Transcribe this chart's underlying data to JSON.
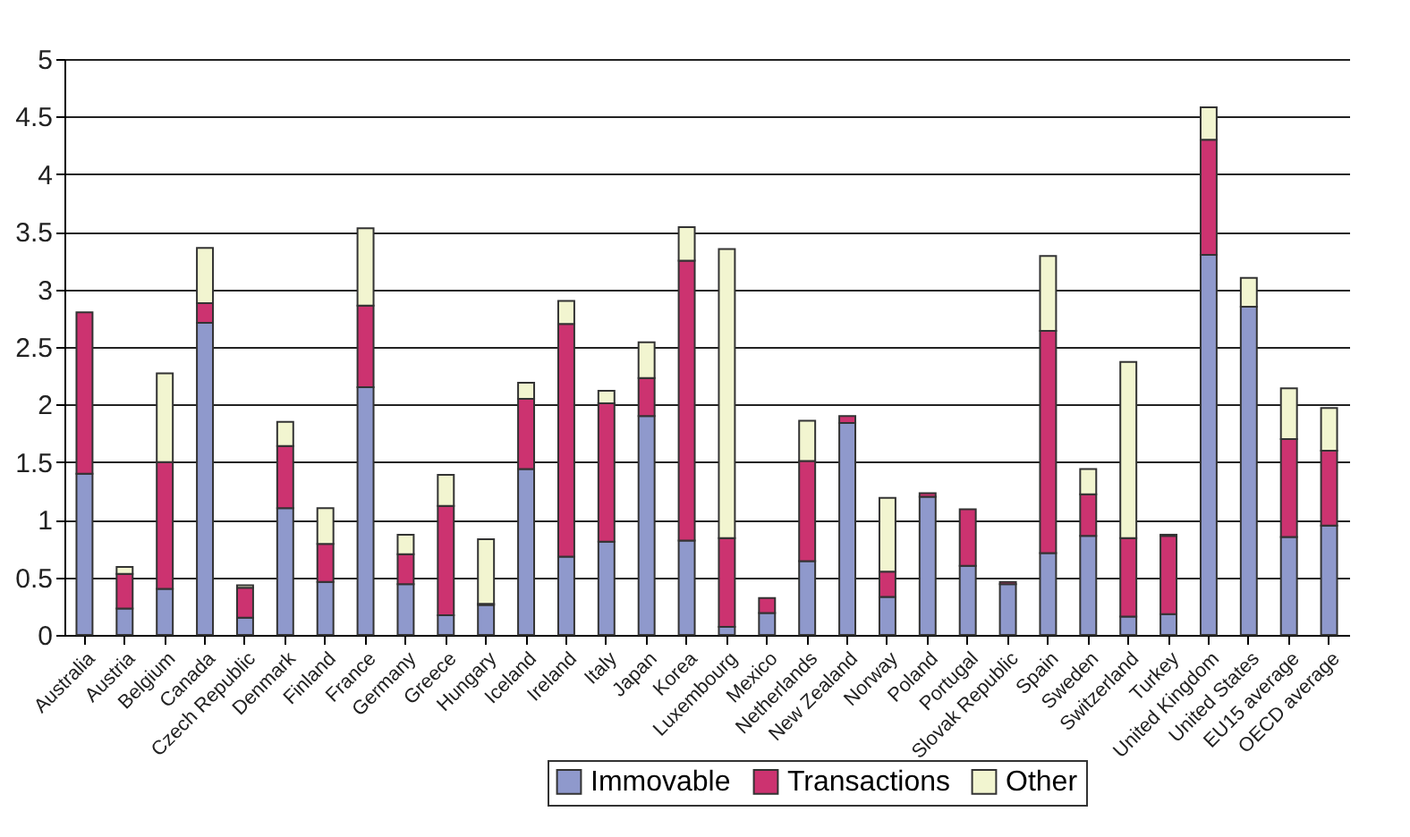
{
  "chart_data": {
    "type": "bar",
    "stacked": true,
    "grid": "y",
    "legend": "bottom",
    "categories": [
      "Australia",
      "Austria",
      "Belgium",
      "Canada",
      "Czech Republic",
      "Denmark",
      "Finland",
      "France",
      "Germany",
      "Greece",
      "Hungary",
      "Iceland",
      "Ireland",
      "Italy",
      "Japan",
      "Korea",
      "Luxembourg",
      "Mexico",
      "Netherlands",
      "New Zealand",
      "Norway",
      "Poland",
      "Portugal",
      "Slovak Republic",
      "Spain",
      "Sweden",
      "Switzerland",
      "Turkey",
      "United Kingdom",
      "United States",
      "EU15 average",
      "OECD average"
    ],
    "series": [
      {
        "name": "Immovable",
        "color": "#8f99cc",
        "values": [
          1.4,
          0.23,
          0.4,
          2.71,
          0.15,
          1.1,
          0.46,
          2.15,
          0.44,
          0.17,
          0.26,
          1.44,
          0.68,
          0.81,
          1.9,
          0.82,
          0.07,
          0.19,
          0.64,
          1.84,
          0.33,
          1.2,
          0.6,
          0.44,
          0.71,
          0.86,
          0.16,
          0.18,
          3.3,
          2.85,
          0.85,
          0.95
        ]
      },
      {
        "name": "Transactions",
        "color": "#cc3370",
        "values": [
          1.4,
          0.3,
          1.1,
          0.17,
          0.26,
          0.54,
          0.33,
          0.71,
          0.26,
          0.95,
          0.01,
          0.61,
          2.02,
          1.2,
          0.33,
          2.43,
          0.77,
          0.13,
          0.87,
          0.06,
          0.22,
          0.03,
          0.49,
          0.02,
          1.93,
          0.36,
          0.68,
          0.68,
          1.0,
          null,
          0.85,
          0.65
        ]
      },
      {
        "name": "Other",
        "color": "#f2f5d0",
        "values": [
          null,
          0.06,
          0.77,
          0.48,
          0.02,
          0.21,
          0.31,
          0.67,
          0.17,
          0.27,
          0.56,
          0.14,
          0.2,
          0.11,
          0.31,
          0.29,
          2.51,
          null,
          0.35,
          null,
          0.64,
          null,
          null,
          null,
          0.65,
          0.22,
          1.53,
          0.01,
          0.28,
          0.25,
          0.44,
          0.37
        ]
      }
    ],
    "ylim": [
      0,
      5
    ],
    "yticks": [
      0,
      0.5,
      1,
      1.5,
      2,
      2.5,
      3,
      3.5,
      4,
      4.5,
      5
    ]
  }
}
